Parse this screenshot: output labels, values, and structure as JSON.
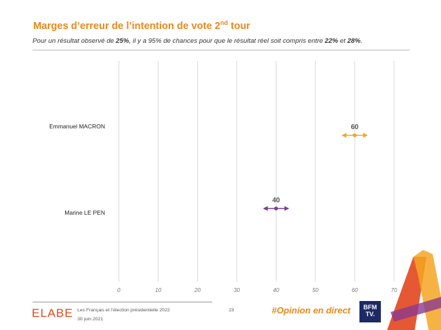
{
  "header": {
    "title_main": "Marges d’erreur de l’intention de vote 2",
    "title_sup": "nd",
    "title_end": " tour",
    "subtitle_a": "Pour un résultat observé de ",
    "subtitle_b": "25%",
    "subtitle_c": ", il y a 95% de chances pour que le résultat réel soit compris entre ",
    "subtitle_d": "22%",
    "subtitle_e": " et ",
    "subtitle_f": "28%",
    "subtitle_g": "."
  },
  "chart_data": {
    "type": "scatter",
    "title": "",
    "xlabel": "",
    "ylabel": "",
    "xlim": [
      0,
      70
    ],
    "xticks": [
      0,
      10,
      20,
      30,
      40,
      50,
      60,
      70
    ],
    "grid": true,
    "categories": [
      "Emmanuel MACRON",
      "Marine LE PEN"
    ],
    "series": [
      {
        "label": "Emmanuel MACRON",
        "value": 60,
        "low": 57,
        "high": 63,
        "color": "#F5A623"
      },
      {
        "label": "Marine LE PEN",
        "value": 40,
        "low": 37,
        "high": 43,
        "color": "#7B3F98"
      }
    ]
  },
  "footer": {
    "logo": "ELABE",
    "line1": "Les Français et l’élection présidentielle 2022",
    "line2": "30 juin 2021",
    "page": "23",
    "hashtag": "#Opinion en direct",
    "bfm": "BFM TV."
  },
  "colors": {
    "accent": "#E8891A",
    "grid": "#d9d9d9"
  }
}
